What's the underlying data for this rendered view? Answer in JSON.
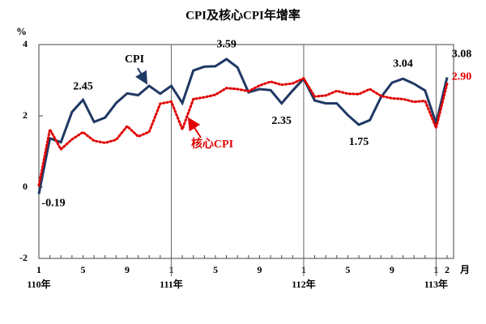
{
  "chart_data": {
    "type": "line",
    "title": "CPI及核心CPI年增率",
    "y_label": "%",
    "x_unit": "月",
    "categories": [
      "1",
      null,
      null,
      null,
      "5",
      null,
      null,
      null,
      "9",
      null,
      null,
      null,
      "1",
      null,
      null,
      null,
      "5",
      null,
      null,
      null,
      "9",
      null,
      null,
      null,
      "1",
      null,
      null,
      null,
      "5",
      null,
      null,
      null,
      "9",
      null,
      null,
      null,
      "1",
      "2"
    ],
    "category_groups": [
      "110年",
      null,
      null,
      null,
      null,
      null,
      null,
      null,
      null,
      null,
      null,
      null,
      "111年",
      null,
      null,
      null,
      null,
      null,
      null,
      null,
      null,
      null,
      null,
      null,
      "112年",
      null,
      null,
      null,
      null,
      null,
      null,
      null,
      null,
      null,
      null,
      null,
      "113年",
      null
    ],
    "series": [
      {
        "name": "CPI",
        "color": "#1f3864",
        "values": [
          -0.19,
          1.37,
          1.26,
          2.11,
          2.45,
          1.83,
          1.95,
          2.36,
          2.63,
          2.58,
          2.84,
          2.62,
          2.84,
          2.36,
          3.27,
          3.38,
          3.39,
          3.59,
          3.36,
          2.66,
          2.75,
          2.72,
          2.35,
          2.71,
          3.04,
          2.43,
          2.35,
          2.35,
          2.02,
          1.75,
          1.88,
          2.52,
          2.93,
          3.04,
          2.9,
          2.71,
          1.79,
          3.08
        ],
        "value_labels": [
          "-0.19",
          null,
          null,
          null,
          "2.45",
          null,
          null,
          null,
          null,
          null,
          null,
          null,
          null,
          null,
          null,
          null,
          null,
          "3.59",
          null,
          null,
          null,
          null,
          "2.35",
          null,
          null,
          null,
          null,
          null,
          null,
          "1.75",
          null,
          null,
          null,
          "3.04",
          null,
          null,
          null,
          "3.08"
        ]
      },
      {
        "name": "核心CPI",
        "color": "#e00000",
        "values": [
          0.05,
          1.62,
          1.06,
          1.34,
          1.54,
          1.3,
          1.24,
          1.33,
          1.71,
          1.42,
          1.55,
          2.34,
          2.4,
          1.62,
          2.47,
          2.52,
          2.59,
          2.78,
          2.75,
          2.69,
          2.85,
          2.96,
          2.87,
          2.91,
          3.05,
          2.54,
          2.57,
          2.7,
          2.62,
          2.61,
          2.75,
          2.56,
          2.49,
          2.47,
          2.39,
          2.42,
          1.66,
          2.9
        ],
        "value_labels": [
          null,
          null,
          null,
          null,
          null,
          null,
          null,
          null,
          null,
          null,
          null,
          null,
          null,
          null,
          null,
          null,
          null,
          null,
          null,
          null,
          null,
          null,
          null,
          null,
          null,
          null,
          null,
          null,
          null,
          null,
          null,
          null,
          null,
          null,
          null,
          null,
          null,
          "2.90"
        ]
      }
    ],
    "ylim": [
      -2,
      4
    ],
    "yticks": [
      4,
      2,
      0,
      -2
    ]
  }
}
